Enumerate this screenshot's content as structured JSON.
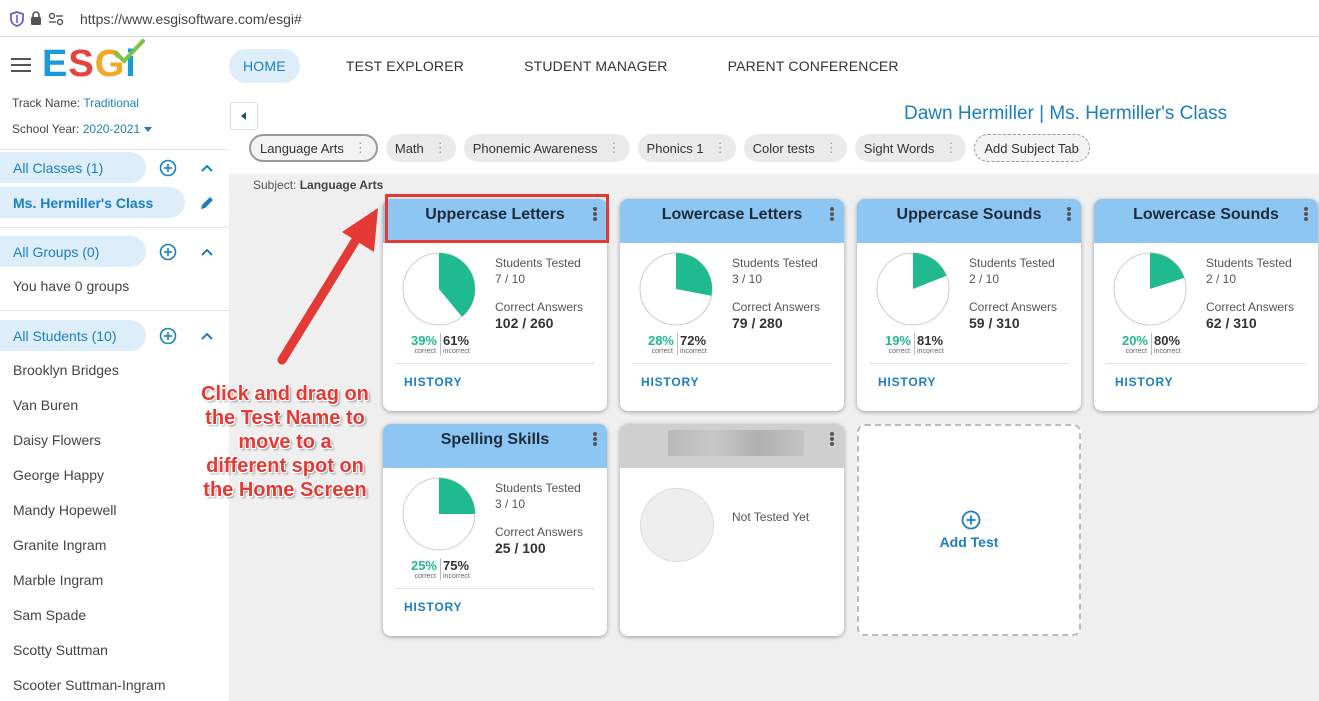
{
  "browser": {
    "url": "https://www.esgisoftware.com/esgi#"
  },
  "header": {
    "logo": {
      "e": "E",
      "s": "S",
      "g": "G",
      "i": "i"
    },
    "nav": [
      {
        "label": "HOME",
        "active": true
      },
      {
        "label": "TEST EXPLORER",
        "active": false
      },
      {
        "label": "STUDENT MANAGER",
        "active": false
      },
      {
        "label": "PARENT CONFERENCER",
        "active": false
      }
    ]
  },
  "sidebar": {
    "track_label": "Track Name:",
    "track_value": "Traditional",
    "year_label": "School Year:",
    "year_value": "2020-2021",
    "classes_header": "All Classes (1)",
    "class_item": "Ms. Hermiller's Class",
    "groups_header": "All Groups (0)",
    "groups_empty": "You have 0 groups",
    "students_header": "All Students (10)",
    "students": [
      "Brooklyn Bridges",
      "Van Buren",
      "Daisy Flowers",
      "George Happy",
      "Mandy Hopewell",
      "Granite Ingram",
      "Marble Ingram",
      "Sam Spade",
      "Scotty Suttman",
      "Scooter Suttman-Ingram"
    ]
  },
  "main": {
    "teacher_title": "Dawn Hermiller | Ms. Hermiller's Class",
    "tabs": [
      {
        "label": "Language Arts",
        "active": true
      },
      {
        "label": "Math"
      },
      {
        "label": "Phonemic Awareness"
      },
      {
        "label": "Phonics 1"
      },
      {
        "label": "Color tests"
      },
      {
        "label": "Sight Words"
      }
    ],
    "add_tab_label": "Add Subject Tab",
    "subject_prefix": "Subject:",
    "subject_name": "Language Arts",
    "cards": [
      {
        "title": "Uppercase Letters",
        "students_tested_label": "Students Tested",
        "students_tested": "7 / 10",
        "correct_label": "Correct Answers",
        "correct": "102 / 260",
        "pct_correct": "39%",
        "pct_incorrect": "61%",
        "fraction": 0.39,
        "history": "HISTORY"
      },
      {
        "title": "Lowercase Letters",
        "students_tested_label": "Students Tested",
        "students_tested": "3 / 10",
        "correct_label": "Correct Answers",
        "correct": "79 / 280",
        "pct_correct": "28%",
        "pct_incorrect": "72%",
        "fraction": 0.28,
        "history": "HISTORY"
      },
      {
        "title": "Uppercase Sounds",
        "students_tested_label": "Students Tested",
        "students_tested": "2 / 10",
        "correct_label": "Correct Answers",
        "correct": "59 / 310",
        "pct_correct": "19%",
        "pct_incorrect": "81%",
        "fraction": 0.19,
        "history": "HISTORY"
      },
      {
        "title": "Lowercase Sounds",
        "students_tested_label": "Students Tested",
        "students_tested": "2 / 10",
        "correct_label": "Correct Answers",
        "correct": "62 / 310",
        "pct_correct": "20%",
        "pct_incorrect": "80%",
        "fraction": 0.2,
        "history": "HISTORY"
      },
      {
        "title": "Spelling Skills",
        "students_tested_label": "Students Tested",
        "students_tested": "3 / 10",
        "correct_label": "Correct Answers",
        "correct": "25 / 100",
        "pct_correct": "25%",
        "pct_incorrect": "75%",
        "fraction": 0.25,
        "history": "HISTORY"
      }
    ],
    "pct_correct_sub": "correct",
    "pct_incorrect_sub": "incorrect",
    "untested_card": {
      "status": "Not Tested Yet"
    },
    "add_test_label": "Add Test"
  },
  "annotation": {
    "text": "Click and drag on the Test Name to move to a different spot on the Home Screen"
  },
  "colors": {
    "accent": "#1a7fc1",
    "card_header": "#8dc6f2",
    "pie_fill": "#1fba8e",
    "annotation": "#e53935"
  }
}
